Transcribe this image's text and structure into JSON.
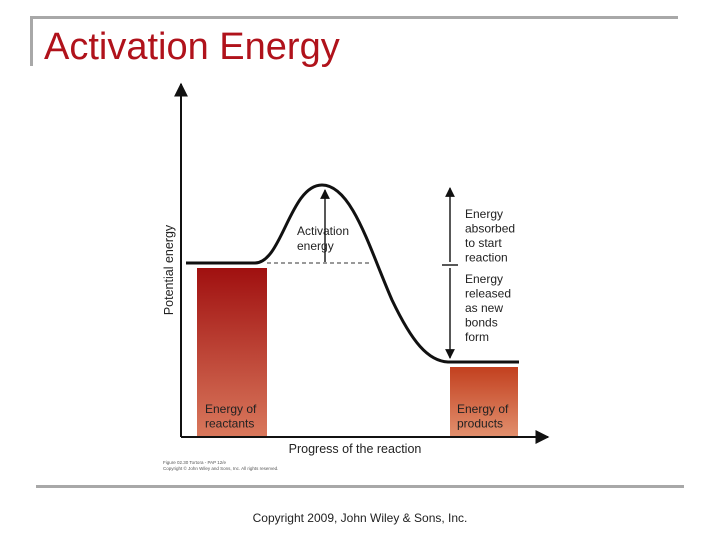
{
  "slide": {
    "title": "Activation Energy",
    "footer": "Copyright 2009, John Wiley & Sons, Inc."
  },
  "diagram": {
    "y_axis_label": "Potential energy",
    "x_axis_label": "Progress of the reaction",
    "activation_label": [
      "Activation",
      "energy"
    ],
    "absorbed_label": [
      "Energy",
      "absorbed",
      "to start",
      "reaction"
    ],
    "released_label": [
      "Energy",
      "released",
      "as new",
      "bonds",
      "form"
    ],
    "reactants_label": [
      "Energy of",
      "reactants"
    ],
    "products_label": [
      "Energy of",
      "products"
    ],
    "fine_print": [
      "Figure 02.30  Tortora - PAP 12/e",
      "Copyright © John Wiley and Sons, Inc. All rights reserved."
    ],
    "colors": {
      "reactants_top": "#a01010",
      "reactants_bottom": "#d9785c",
      "products_top": "#c2401f",
      "products_bottom": "#e2906e",
      "title": "#b0121b"
    }
  }
}
